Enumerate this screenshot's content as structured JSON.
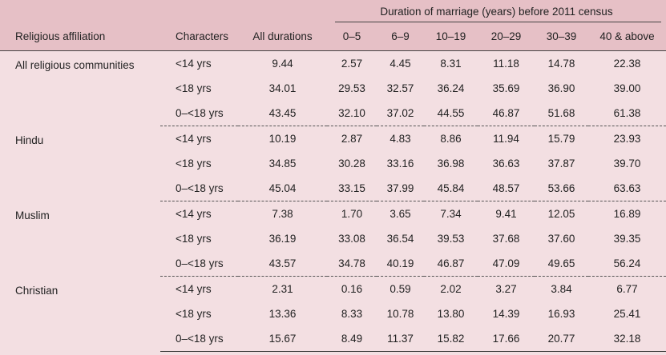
{
  "header": {
    "group_label": "Duration of marriage (years) before 2011 census",
    "col_religion": "Religious affiliation",
    "col_characters": "Characters",
    "col_all": "All durations",
    "duration_cols": [
      "0–5",
      "6–9",
      "10–19",
      "20–29",
      "30–39",
      "40 & above"
    ]
  },
  "groups": [
    {
      "name": "All religious communities",
      "rows": [
        {
          "char": "<14 yrs",
          "all": "9.44",
          "vals": [
            "2.57",
            "4.45",
            "8.31",
            "11.18",
            "14.78",
            "22.38"
          ]
        },
        {
          "char": "<18 yrs",
          "all": "34.01",
          "vals": [
            "29.53",
            "32.57",
            "36.24",
            "35.69",
            "36.90",
            "39.00"
          ]
        },
        {
          "char": "0–<18 yrs",
          "all": "43.45",
          "vals": [
            "32.10",
            "37.02",
            "44.55",
            "46.87",
            "51.68",
            "61.38"
          ]
        }
      ]
    },
    {
      "name": "Hindu",
      "rows": [
        {
          "char": "<14 yrs",
          "all": "10.19",
          "vals": [
            "2.87",
            "4.83",
            "8.86",
            "11.94",
            "15.79",
            "23.93"
          ]
        },
        {
          "char": "<18 yrs",
          "all": "34.85",
          "vals": [
            "30.28",
            "33.16",
            "36.98",
            "36.63",
            "37.87",
            "39.70"
          ]
        },
        {
          "char": "0–<18 yrs",
          "all": "45.04",
          "vals": [
            "33.15",
            "37.99",
            "45.84",
            "48.57",
            "53.66",
            "63.63"
          ]
        }
      ]
    },
    {
      "name": "Muslim",
      "rows": [
        {
          "char": "<14 yrs",
          "all": "7.38",
          "vals": [
            "1.70",
            "3.65",
            "7.34",
            "9.41",
            "12.05",
            "16.89"
          ]
        },
        {
          "char": "<18 yrs",
          "all": "36.19",
          "vals": [
            "33.08",
            "36.54",
            "39.53",
            "37.68",
            "37.60",
            "39.35"
          ]
        },
        {
          "char": "0–<18 yrs",
          "all": "43.57",
          "vals": [
            "34.78",
            "40.19",
            "46.87",
            "47.09",
            "49.65",
            "56.24"
          ]
        }
      ]
    },
    {
      "name": "Christian",
      "rows": [
        {
          "char": "<14 yrs",
          "all": "2.31",
          "vals": [
            "0.16",
            "0.59",
            "2.02",
            "3.27",
            "3.84",
            "6.77"
          ]
        },
        {
          "char": "<18 yrs",
          "all": "13.36",
          "vals": [
            "8.33",
            "10.78",
            "13.80",
            "14.39",
            "16.93",
            "25.41"
          ]
        },
        {
          "char": "0–<18 yrs",
          "all": "15.67",
          "vals": [
            "8.49",
            "11.37",
            "15.82",
            "17.66",
            "20.77",
            "32.18"
          ]
        }
      ]
    }
  ]
}
